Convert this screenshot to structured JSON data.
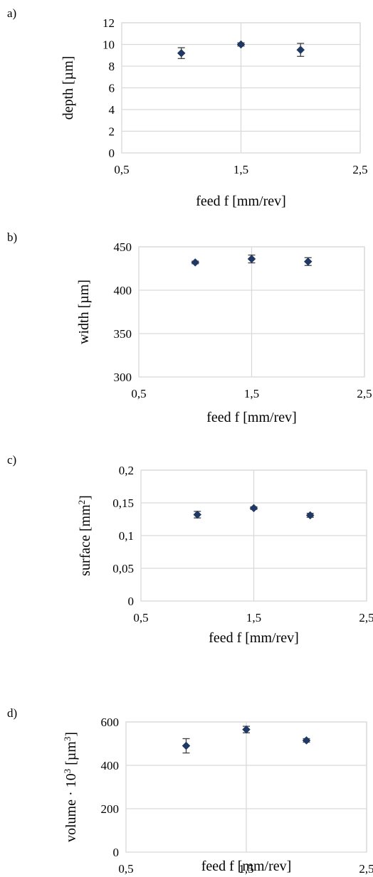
{
  "chart_data": [
    {
      "panel": "a)",
      "type": "scatter",
      "xlabel": "feed f [mm/rev]",
      "ylabel": "depth [µm]",
      "ylabel_sup": "",
      "ylabel_tail": "",
      "xlim": [
        0.5,
        2.5
      ],
      "ylim": [
        0,
        12
      ],
      "xticks": [
        "0,5",
        "1,5",
        "2,5"
      ],
      "yticks": [
        "0",
        "2",
        "4",
        "6",
        "8",
        "10",
        "12"
      ],
      "grid": "on",
      "series": [
        {
          "x": [
            1.0,
            1.5,
            2.0
          ],
          "y": [
            9.2,
            10.0,
            9.5
          ],
          "err": [
            0.5,
            0.15,
            0.6
          ]
        }
      ]
    },
    {
      "panel": "b)",
      "type": "scatter",
      "xlabel": "feed f [mm/rev]",
      "ylabel": "width [µm]",
      "ylabel_sup": "",
      "ylabel_tail": "",
      "xlim": [
        0.5,
        2.5
      ],
      "ylim": [
        300,
        450
      ],
      "xticks": [
        "0,5",
        "1,5",
        "2,5"
      ],
      "yticks": [
        "300",
        "350",
        "400",
        "450"
      ],
      "grid": "on",
      "series": [
        {
          "x": [
            1.0,
            1.5,
            2.0
          ],
          "y": [
            432,
            436,
            433
          ],
          "err": [
            1.5,
            4.5,
            4.5
          ]
        }
      ]
    },
    {
      "panel": "c)",
      "type": "scatter",
      "xlabel": "feed f [mm/rev]",
      "ylabel": "surface [mm",
      "ylabel_sup": "2",
      "ylabel_tail": "]",
      "xlim": [
        0.5,
        2.5
      ],
      "ylim": [
        0,
        0.2
      ],
      "xticks": [
        "0,5",
        "1,5",
        "2,5"
      ],
      "yticks": [
        "0",
        "0,05",
        "0,1",
        "0,15",
        "0,2"
      ],
      "grid": "on",
      "series": [
        {
          "x": [
            1.0,
            1.5,
            2.0
          ],
          "y": [
            0.132,
            0.142,
            0.131
          ],
          "err": [
            0.005,
            0.002,
            0.003
          ]
        }
      ]
    },
    {
      "panel": "d)",
      "type": "scatter",
      "xlabel": "feed f [mm/rev]",
      "ylabel": "volume · 10",
      "ylabel_sup": "3",
      "ylabel_tail": " [µm",
      "ylabel_sup2": "3",
      "ylabel_tail2": "]",
      "xlim": [
        0.5,
        2.5
      ],
      "ylim": [
        0,
        600
      ],
      "xticks": [
        "0,5",
        "1,5",
        "2,5"
      ],
      "yticks": [
        "0",
        "200",
        "400",
        "600"
      ],
      "grid": "on",
      "series": [
        {
          "x": [
            1.0,
            1.5,
            2.0
          ],
          "y": [
            490,
            565,
            515
          ],
          "err": [
            33,
            15,
            8
          ]
        }
      ]
    }
  ],
  "colors": {
    "marker": "#1f3864",
    "grid": "#d9d9d9",
    "errorbar": "#404040"
  }
}
